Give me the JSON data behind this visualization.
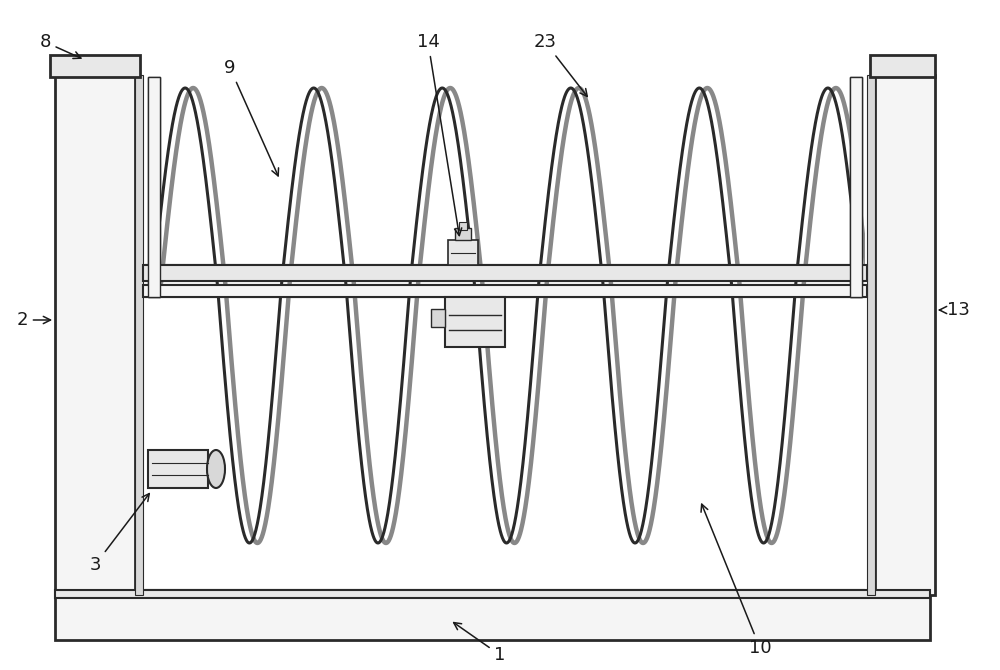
{
  "bg_color": "#ffffff",
  "lc": "#2a2a2a",
  "fc_light": "#f5f5f5",
  "fc_mid": "#e8e8e8",
  "fc_dark": "#d8d8d8",
  "figsize": [
    10.0,
    6.7
  ],
  "dpi": 100,
  "label_fs": 13
}
